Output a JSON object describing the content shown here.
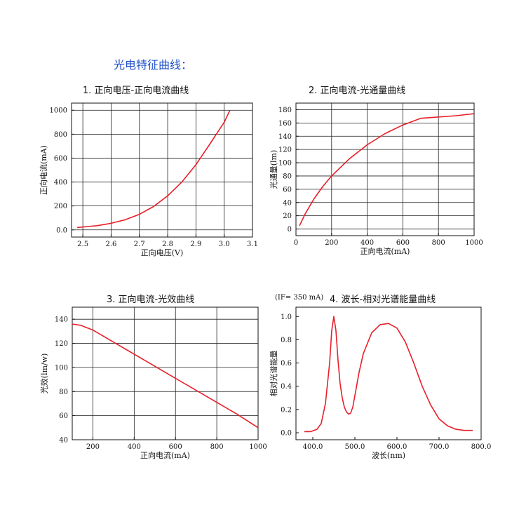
{
  "page_title": "光电特征曲线：",
  "chart_data": [
    {
      "type": "line",
      "title": "1. 正向电压-正向电流曲线",
      "xlabel": "正向电压(V)",
      "ylabel": "正向电流(mA)",
      "xlim": [
        2.46,
        3.1
      ],
      "ylim": [
        -60,
        1060
      ],
      "xticks": [
        2.5,
        2.6,
        2.7,
        2.8,
        2.9,
        3.0,
        3.1
      ],
      "yticks": [
        0,
        200,
        400,
        600,
        800,
        1000
      ],
      "grid": true,
      "color": "#e8202a",
      "x": [
        2.48,
        2.55,
        2.6,
        2.65,
        2.7,
        2.75,
        2.8,
        2.85,
        2.9,
        2.95,
        3.0,
        3.02
      ],
      "y": [
        20,
        35,
        55,
        85,
        130,
        195,
        285,
        400,
        545,
        720,
        900,
        1000
      ]
    },
    {
      "type": "line",
      "title": "2. 正向电流-光通量曲线",
      "xlabel": "正向电流(mA)",
      "ylabel": "光通量(lm)",
      "xlim": [
        0,
        1000
      ],
      "ylim": [
        -10,
        190
      ],
      "xticks": [
        0,
        200,
        400,
        600,
        800,
        1000
      ],
      "yticks": [
        0,
        20,
        40,
        60,
        80,
        100,
        120,
        140,
        160,
        180
      ],
      "grid": true,
      "color": "#e8202a",
      "x": [
        20,
        50,
        100,
        150,
        200,
        300,
        400,
        500,
        600,
        650,
        700,
        800,
        900,
        1000
      ],
      "y": [
        5,
        22,
        45,
        64,
        80,
        106,
        127,
        144,
        157,
        162,
        167,
        169,
        171,
        174
      ]
    },
    {
      "type": "line",
      "title": "3. 正向电流-光效曲线",
      "xlabel": "正向电流(mA)",
      "ylabel": "光效(lm/w)",
      "xlim": [
        100,
        1000
      ],
      "ylim": [
        40,
        150
      ],
      "xticks": [
        200,
        400,
        600,
        800,
        1000
      ],
      "yticks": [
        40,
        60,
        80,
        100,
        120,
        140
      ],
      "grid": true,
      "color": "#e8202a",
      "x": [
        100,
        140,
        200,
        300,
        400,
        500,
        600,
        700,
        800,
        900,
        1000
      ],
      "y": [
        136,
        135,
        131,
        121,
        111,
        101,
        91,
        81,
        71,
        61,
        50
      ]
    },
    {
      "type": "line",
      "title": "4. 波长-相对光谱能量曲线",
      "note": "(IF= 350 mA)",
      "xlabel": "波长(nm)",
      "ylabel": "相对光谱能量",
      "xlim": [
        360,
        800
      ],
      "ylim": [
        -0.06,
        1.08
      ],
      "xticks": [
        400,
        500,
        600,
        700,
        800
      ],
      "yticks": [
        0.0,
        0.2,
        0.4,
        0.6,
        0.8,
        1.0
      ],
      "grid": false,
      "color": "#e8202a",
      "x": [
        380,
        395,
        410,
        420,
        430,
        440,
        445,
        450,
        455,
        460,
        465,
        470,
        475,
        480,
        485,
        490,
        495,
        500,
        510,
        520,
        540,
        560,
        580,
        600,
        620,
        640,
        660,
        680,
        700,
        720,
        740,
        760,
        780
      ],
      "y": [
        0.01,
        0.01,
        0.03,
        0.08,
        0.25,
        0.6,
        0.88,
        1.0,
        0.88,
        0.62,
        0.42,
        0.3,
        0.22,
        0.18,
        0.16,
        0.17,
        0.22,
        0.32,
        0.52,
        0.68,
        0.86,
        0.93,
        0.94,
        0.9,
        0.78,
        0.6,
        0.4,
        0.24,
        0.12,
        0.06,
        0.03,
        0.02,
        0.02
      ]
    }
  ]
}
